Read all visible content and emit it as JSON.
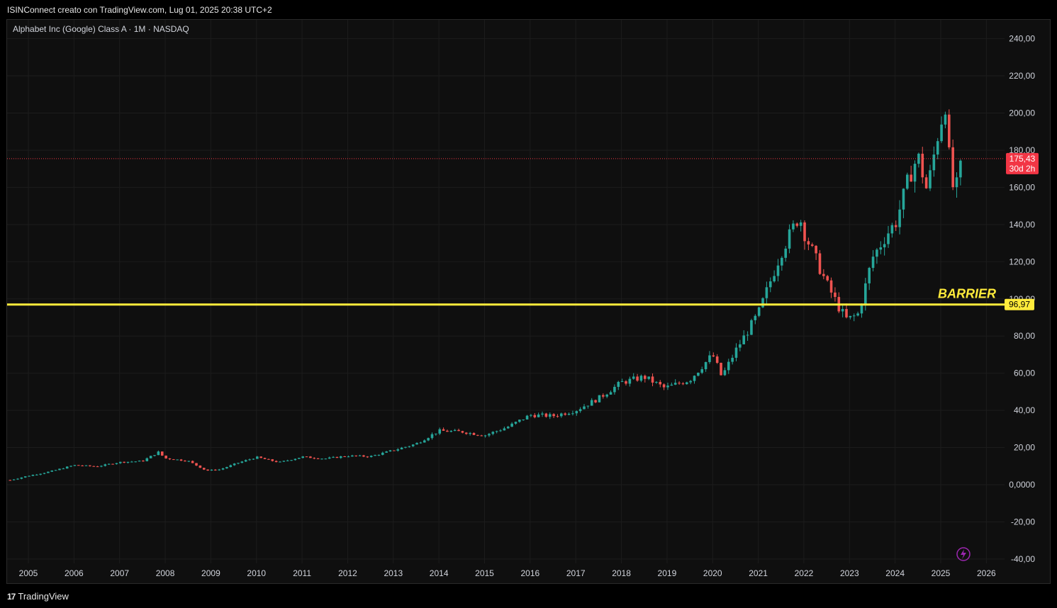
{
  "header": {
    "caption": "ISINConnect creato con TradingView.com, Lug 01, 2025 20:38 UTC+2"
  },
  "chart_header": {
    "symbol_line": "Alphabet Inc (Google) Class A · 1M · NASDAQ"
  },
  "footer": {
    "brand": "TradingView"
  },
  "colors": {
    "up": "#26a69a",
    "down": "#ef5350",
    "barrier": "#ffeb3b",
    "background": "#0f0f0f",
    "price_badge": "#f23645"
  },
  "chart_data": {
    "type": "candlestick",
    "interval": "1M",
    "x_axis": {
      "ticks": [
        "2005",
        "2006",
        "2007",
        "2008",
        "2009",
        "2010",
        "2011",
        "2012",
        "2013",
        "2014",
        "2015",
        "2016",
        "2017",
        "2018",
        "2019",
        "2020",
        "2021",
        "2022",
        "2023",
        "2024",
        "2025",
        "2026"
      ],
      "range": [
        2004.55,
        2026.3
      ]
    },
    "y_axis": {
      "ticks": [
        "240,00",
        "220,00",
        "200,00",
        "180,00",
        "160,00",
        "140,00",
        "120,00",
        "100,00",
        "80,00",
        "60,00",
        "40,00",
        "20,00",
        "0,0000",
        "-20,00",
        "-40,00"
      ],
      "tick_values": [
        240,
        220,
        200,
        180,
        160,
        140,
        120,
        100,
        80,
        60,
        40,
        20,
        0,
        -20,
        -40
      ],
      "range": [
        -40,
        250
      ]
    },
    "grid": true,
    "last_price": {
      "value": 175.43,
      "label": "175,43",
      "countdown": "30d 2h"
    },
    "barrier": {
      "value": 96.97,
      "label": "96,97",
      "annotation": "BARRIER"
    },
    "series_anchor_closes": [
      [
        2004.6,
        2.5
      ],
      [
        2005.0,
        4.8
      ],
      [
        2005.5,
        7.2
      ],
      [
        2006.0,
        10.5
      ],
      [
        2006.5,
        9.8
      ],
      [
        2007.0,
        12.1
      ],
      [
        2007.5,
        12.7
      ],
      [
        2007.85,
        17.5
      ],
      [
        2008.0,
        14.2
      ],
      [
        2008.5,
        12.8
      ],
      [
        2008.9,
        7.6
      ],
      [
        2009.2,
        8.2
      ],
      [
        2009.6,
        11.8
      ],
      [
        2010.0,
        14.8
      ],
      [
        2010.5,
        12.0
      ],
      [
        2011.0,
        15.0
      ],
      [
        2011.5,
        14.0
      ],
      [
        2012.0,
        15.5
      ],
      [
        2012.5,
        15.2
      ],
      [
        2013.0,
        18.5
      ],
      [
        2013.5,
        22.0
      ],
      [
        2014.0,
        29.0
      ],
      [
        2014.5,
        28.5
      ],
      [
        2015.0,
        26.5
      ],
      [
        2015.5,
        31.0
      ],
      [
        2016.0,
        37.5
      ],
      [
        2016.5,
        37.0
      ],
      [
        2017.0,
        40.0
      ],
      [
        2017.5,
        46.5
      ],
      [
        2018.0,
        55.0
      ],
      [
        2018.5,
        58.0
      ],
      [
        2018.95,
        52.0
      ],
      [
        2019.5,
        56.5
      ],
      [
        2020.0,
        70.0
      ],
      [
        2020.2,
        58.0
      ],
      [
        2020.5,
        72.0
      ],
      [
        2021.0,
        92.0
      ],
      [
        2021.5,
        125.0
      ],
      [
        2021.9,
        145.0
      ],
      [
        2022.0,
        136.0
      ],
      [
        2022.5,
        108.0
      ],
      [
        2022.8,
        94.0
      ],
      [
        2022.95,
        88.5
      ],
      [
        2023.2,
        92.0
      ],
      [
        2023.5,
        122.0
      ],
      [
        2023.9,
        138.0
      ],
      [
        2024.0,
        140.0
      ],
      [
        2024.3,
        165.0
      ],
      [
        2024.5,
        177.0
      ],
      [
        2024.7,
        158.0
      ],
      [
        2024.95,
        190.0
      ],
      [
        2025.1,
        205.0
      ],
      [
        2025.2,
        171.0
      ],
      [
        2025.3,
        155.0
      ],
      [
        2025.45,
        172.0
      ],
      [
        2025.5,
        175.43
      ]
    ]
  }
}
